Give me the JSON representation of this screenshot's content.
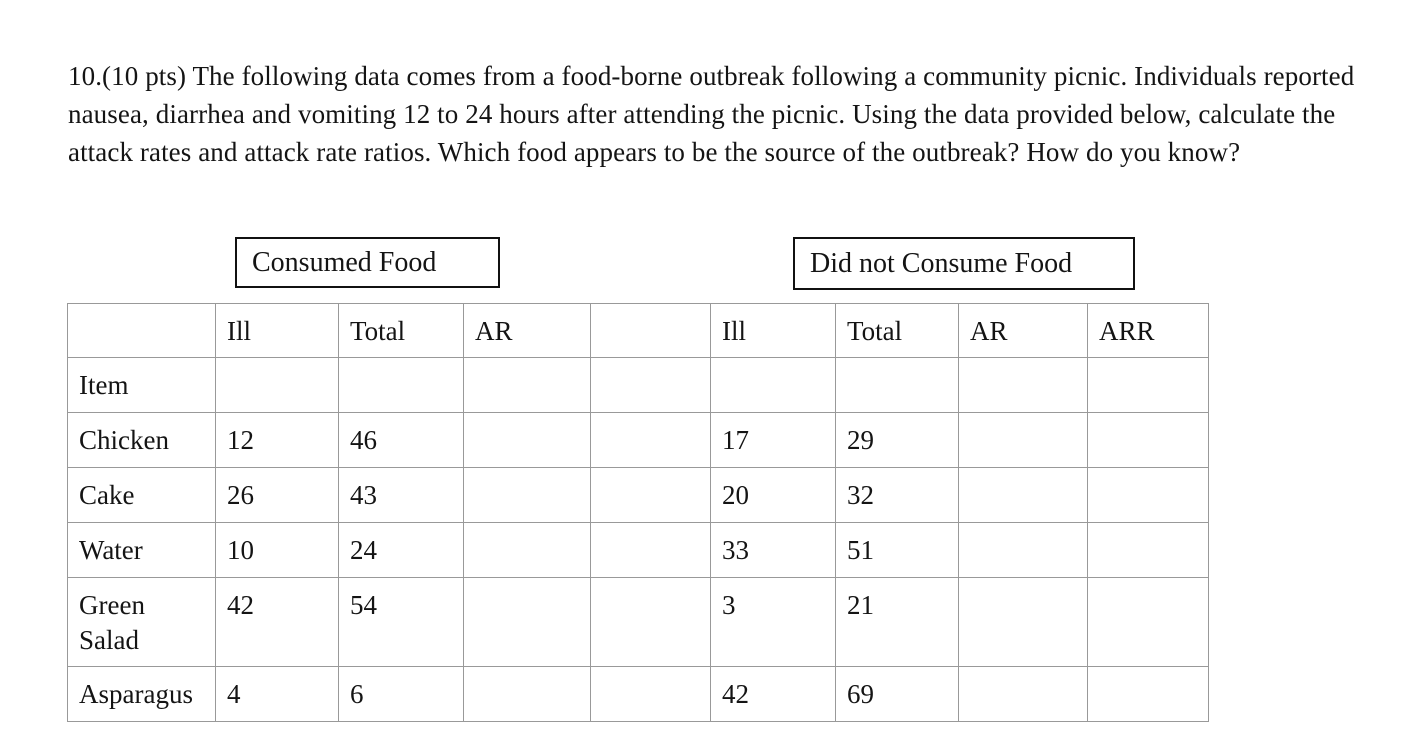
{
  "question": {
    "text": "10.(10 pts) The following data comes from a food-borne outbreak following a community picnic. Individuals reported nausea, diarrhea and vomiting 12 to 24 hours after attending the picnic.  Using the data provided below, calculate the attack rates and attack rate ratios. Which food appears to be the source of the outbreak? How do you know?"
  },
  "group_labels": {
    "consumed": "Consumed Food",
    "not_consumed": "Did not Consume Food"
  },
  "table": {
    "rows": [
      {
        "cells": [
          "",
          "Ill",
          "Total",
          "AR",
          "",
          "Ill",
          "Total",
          "AR",
          "ARR"
        ]
      },
      {
        "cells": [
          "Item",
          "",
          "",
          "",
          "",
          "",
          "",
          "",
          ""
        ]
      },
      {
        "cells": [
          "Chicken",
          "12",
          "46",
          "",
          "",
          "17",
          "29",
          "",
          ""
        ]
      },
      {
        "cells": [
          "Cake",
          "26",
          "43",
          "",
          "",
          "20",
          "32",
          "",
          ""
        ]
      },
      {
        "cells": [
          "Water",
          "10",
          "24",
          "",
          "",
          "33",
          "51",
          "",
          ""
        ]
      },
      {
        "cells": [
          "Green Salad",
          "42",
          "54",
          "",
          "",
          "3",
          "21",
          "",
          ""
        ]
      },
      {
        "cells": [
          "Asparagus",
          "4",
          "6",
          "",
          "",
          "42",
          "69",
          "",
          ""
        ]
      }
    ]
  },
  "colors": {
    "grid": "#999999",
    "box_border": "#111111",
    "text": "#141414",
    "background": "#ffffff"
  }
}
